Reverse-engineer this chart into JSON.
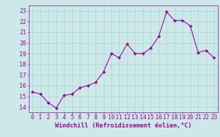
{
  "hours": [
    0,
    1,
    2,
    3,
    4,
    5,
    6,
    7,
    8,
    9,
    10,
    11,
    12,
    13,
    14,
    15,
    16,
    17,
    18,
    19,
    20,
    21,
    22,
    23
  ],
  "values": [
    15.4,
    15.2,
    14.4,
    13.9,
    15.1,
    15.2,
    15.8,
    16.0,
    16.3,
    17.3,
    19.0,
    18.6,
    19.9,
    19.0,
    19.0,
    19.5,
    20.6,
    22.9,
    22.1,
    22.1,
    21.6,
    19.1,
    19.3,
    18.6
  ],
  "line_color": "#990099",
  "marker": "D",
  "marker_size": 2.0,
  "bg_color": "#cce8e8",
  "grid_color": "#aad0d0",
  "ylim": [
    13.5,
    23.5
  ],
  "xlim": [
    -0.5,
    23.5
  ],
  "yticks": [
    14,
    15,
    16,
    17,
    18,
    19,
    20,
    21,
    22,
    23
  ],
  "xticks": [
    0,
    1,
    2,
    3,
    4,
    5,
    6,
    7,
    8,
    9,
    10,
    11,
    12,
    13,
    14,
    15,
    16,
    17,
    18,
    19,
    20,
    21,
    22,
    23
  ],
  "xlabel": "Windchill (Refroidissement éolien,°C)",
  "xlabel_fontsize": 6.5,
  "tick_fontsize": 6.0,
  "line_color_hex": "#880088",
  "spine_color": "#880088"
}
